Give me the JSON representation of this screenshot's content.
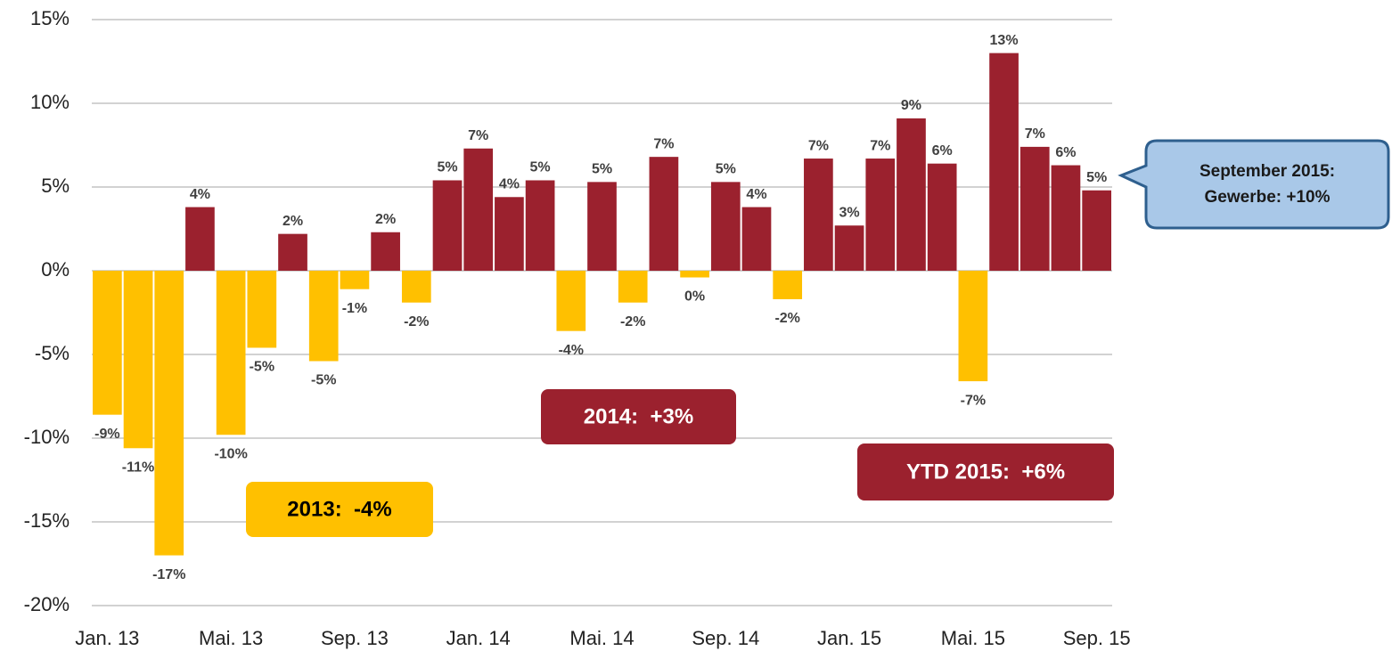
{
  "chart_data": {
    "type": "bar",
    "categories": [
      "Jan. 13",
      null,
      null,
      null,
      "Mai. 13",
      null,
      null,
      null,
      "Sep. 13",
      null,
      null,
      null,
      "Jan. 14",
      null,
      null,
      null,
      "Mai. 14",
      null,
      null,
      null,
      "Sep. 14",
      null,
      null,
      null,
      "Jan. 15",
      null,
      null,
      null,
      "Mai. 15",
      null,
      null,
      null,
      "Sep. 15"
    ],
    "values": [
      -8.6,
      -10.6,
      -17.0,
      3.8,
      -9.8,
      -4.6,
      2.2,
      -5.4,
      -1.1,
      2.3,
      -1.9,
      5.4,
      7.3,
      4.4,
      5.4,
      -3.6,
      5.3,
      -1.9,
      6.8,
      -0.4,
      5.3,
      3.8,
      -1.7,
      6.7,
      2.7,
      6.7,
      9.1,
      6.4,
      -6.6,
      13.0,
      7.4,
      6.3,
      4.8
    ],
    "value_labels": [
      "-9%",
      "-11%",
      "-17%",
      "4%",
      "-10%",
      "-5%",
      "2%",
      "-5%",
      "-1%",
      "2%",
      "-2%",
      "5%",
      "7%",
      "4%",
      "5%",
      "-4%",
      "5%",
      "-2%",
      "7%",
      "0%",
      "5%",
      "4%",
      "-2%",
      "7%",
      "3%",
      "7%",
      "9%",
      "6%",
      "-7%",
      "13%",
      "7%",
      "6%",
      "5%"
    ],
    "color_positive": "#9b212e",
    "color_negative": "#ffc000",
    "ylim": [
      -20,
      15
    ],
    "yticks": [
      {
        "value": -20,
        "label": "-20%"
      },
      {
        "value": -15,
        "label": "-15%"
      },
      {
        "value": -10,
        "label": "-10%"
      },
      {
        "value": -5,
        "label": "-5%"
      },
      {
        "value": 0,
        "label": "0%"
      },
      {
        "value": 5,
        "label": "5%"
      },
      {
        "value": 10,
        "label": "10%"
      },
      {
        "value": 15,
        "label": "15%"
      }
    ],
    "grid": true,
    "annotations": [
      {
        "text": "2013:  -4%",
        "color": "#ffc000",
        "text_color": "#000000"
      },
      {
        "text": "2014:  +3%",
        "color": "#9b212e",
        "text_color": "#ffffff"
      },
      {
        "text": "YTD 2015:  +6%",
        "color": "#9b212e",
        "text_color": "#ffffff"
      }
    ],
    "callout": {
      "lines": [
        "September 2015:",
        "Gewerbe: +10%"
      ],
      "color": "#a9c8e8",
      "border": "#2e5f8e"
    }
  }
}
